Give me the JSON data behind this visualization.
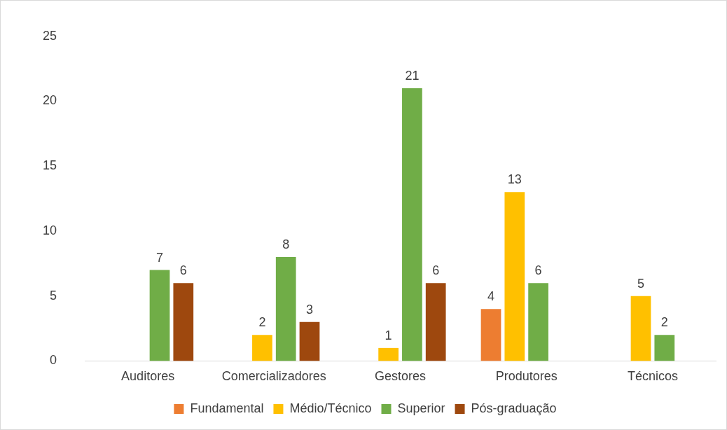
{
  "chart_data": {
    "type": "bar",
    "categories": [
      "Auditores",
      "Comercializadores",
      "Gestores",
      "Produtores",
      "Técnicos"
    ],
    "series": [
      {
        "name": "Fundamental",
        "color": "#ed7d31",
        "values": [
          null,
          null,
          null,
          4,
          null
        ]
      },
      {
        "name": "Médio/Técnico",
        "color": "#ffc000",
        "values": [
          null,
          2,
          1,
          13,
          5
        ]
      },
      {
        "name": "Superior",
        "color": "#70ad47",
        "values": [
          7,
          8,
          21,
          6,
          2
        ]
      },
      {
        "name": "Pós-graduação",
        "color": "#9e480e",
        "values": [
          6,
          3,
          6,
          null,
          null
        ]
      }
    ],
    "ylim": [
      0,
      25
    ],
    "yticks": [
      0,
      5,
      10,
      15,
      20,
      25
    ],
    "grid": false,
    "legend": "bottom",
    "data_labels": true
  }
}
